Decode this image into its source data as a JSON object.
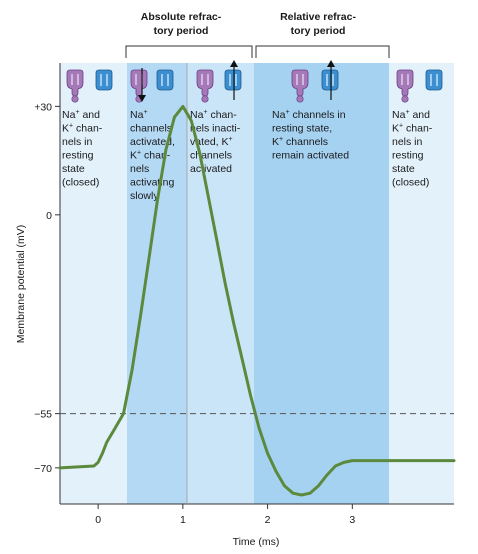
{
  "headers": {
    "absolute": [
      "Absolute refrac-",
      "tory period"
    ],
    "relative": [
      "Relative refrac-",
      "tory period"
    ]
  },
  "phases": [
    {
      "lines": [
        [
          "Na",
          "+",
          " and"
        ],
        [
          "K",
          "+",
          " chan-"
        ],
        [
          "nels in"
        ],
        [
          "resting"
        ],
        [
          "state"
        ],
        [
          "(closed)"
        ]
      ]
    },
    {
      "lines": [
        [
          "Na",
          "+",
          ""
        ],
        [
          "channels"
        ],
        [
          "activated,"
        ],
        [
          "K",
          "+",
          " chan-"
        ],
        [
          "nels"
        ],
        [
          "activating"
        ],
        [
          "slowly"
        ]
      ]
    },
    {
      "lines": [
        [
          "Na",
          "+",
          " chan-"
        ],
        [
          "nels inacti-"
        ],
        [
          "vated, K",
          "+",
          ""
        ],
        [
          "channels"
        ],
        [
          "activated"
        ]
      ]
    },
    {
      "lines": [
        [
          "Na",
          "+",
          " channels in"
        ],
        [
          "resting state,"
        ],
        [
          "K",
          "+",
          " channels"
        ],
        [
          "remain activated"
        ]
      ]
    },
    {
      "lines": [
        [
          "Na",
          "+",
          " and"
        ],
        [
          "K",
          "+",
          " chan-"
        ],
        [
          "nels in"
        ],
        [
          "resting"
        ],
        [
          "state"
        ],
        [
          "(closed)"
        ]
      ]
    }
  ],
  "axes": {
    "ylabel": "Membrane potential (mV)",
    "xlabel": "Time (ms)",
    "yticks": [
      "+30",
      "0",
      "−55",
      "−70"
    ],
    "xticks": [
      "0",
      "1",
      "2",
      "3"
    ]
  },
  "icons": {
    "na_channel_color": "#a578b8",
    "k_channel_color": "#3b8fd0",
    "icon_names": [
      "na-channel-icon",
      "k-channel-icon",
      "down-arrow-icon",
      "up-arrow-icon"
    ]
  },
  "colors": {
    "zone_rest": "#e3f1fb",
    "zone_absolute_1": "#b4d9f4",
    "zone_absolute_2": "#cbe5f8",
    "zone_relative": "#a6d2f2",
    "curve": "#5c8a3c",
    "threshold_line": "#555555"
  },
  "chart_data": {
    "type": "line",
    "xlabel": "Time (ms)",
    "ylabel": "Membrane potential (mV)",
    "xlim": [
      -0.45,
      4.2
    ],
    "ylim": [
      -80,
      42
    ],
    "yticks": [
      30,
      0,
      -55,
      -70
    ],
    "xticks": [
      0,
      1,
      2,
      3
    ],
    "threshold": -55,
    "series": [
      {
        "x": [
          -0.45,
          -0.05,
          0.0,
          0.05,
          0.1,
          0.2,
          0.3,
          0.4,
          0.5,
          0.6,
          0.7,
          0.8,
          0.9,
          1.0,
          1.1,
          1.2,
          1.3,
          1.4,
          1.5,
          1.6,
          1.7,
          1.8,
          1.9,
          2.0,
          2.1,
          2.2,
          2.3,
          2.4,
          2.5,
          2.6,
          2.7,
          2.8,
          2.9,
          3.0,
          3.2,
          3.5,
          4.2
        ],
        "y": [
          -70,
          -69.5,
          -68.5,
          -66,
          -63,
          -59,
          -55,
          -43,
          -28,
          -12,
          4,
          18,
          27,
          30,
          26,
          17,
          5,
          -7,
          -19,
          -30,
          -40,
          -50,
          -59,
          -66,
          -71,
          -75,
          -77,
          -77.5,
          -77,
          -75,
          -72,
          -69.5,
          -68.5,
          -68,
          -68,
          -68,
          -68
        ]
      }
    ]
  }
}
